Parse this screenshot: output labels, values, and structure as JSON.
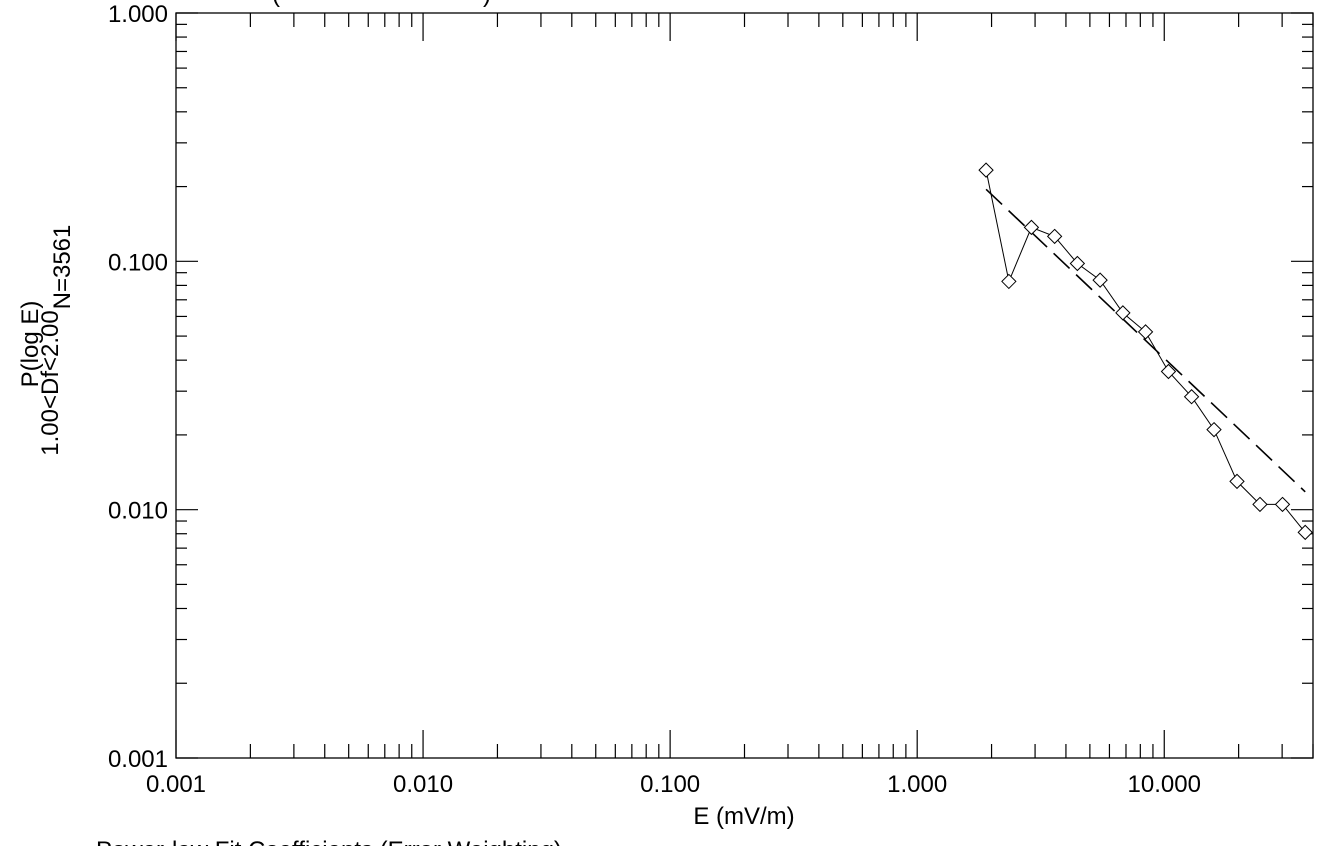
{
  "chart_data": {
    "type": "line",
    "scale": {
      "x": "log",
      "y": "log"
    },
    "xlim": [
      0.001,
      40
    ],
    "ylim": [
      0.001,
      1.0
    ],
    "xlabel": "E (mV/m)",
    "ylabel_lines": [
      "1.00<Df<2.00",
      "P(log E)"
    ],
    "ylabel_side": "N=3561",
    "x_tick_labels": [
      "0.001",
      "0.010",
      "0.100",
      "1.000",
      "10.000"
    ],
    "x_tick_values": [
      0.001,
      0.01,
      0.1,
      1,
      10
    ],
    "y_tick_labels": [
      "0.001",
      "0.010",
      "0.100",
      "1.000"
    ],
    "y_tick_values": [
      0.001,
      0.01,
      0.1,
      1
    ],
    "partial_text_top": "(",
    "partial_text_top_right": ")",
    "partial_text_bottom": "Power-law Fit Coefficients (Error Weighting)",
    "grid": false,
    "series": [
      {
        "style": "line-diamond",
        "x": [
          1.9,
          2.35,
          2.9,
          3.6,
          4.45,
          5.5,
          6.8,
          8.4,
          10.4,
          12.9,
          15.9,
          19.7,
          24.4,
          30.1,
          37.2
        ],
        "y": [
          0.233,
          0.083,
          0.137,
          0.126,
          0.098,
          0.084,
          0.062,
          0.052,
          0.036,
          0.0285,
          0.021,
          0.013,
          0.0105,
          0.0105,
          0.0081
        ]
      },
      {
        "style": "dashed",
        "x": [
          1.9,
          37.2
        ],
        "y": [
          0.195,
          0.0118
        ]
      }
    ]
  }
}
